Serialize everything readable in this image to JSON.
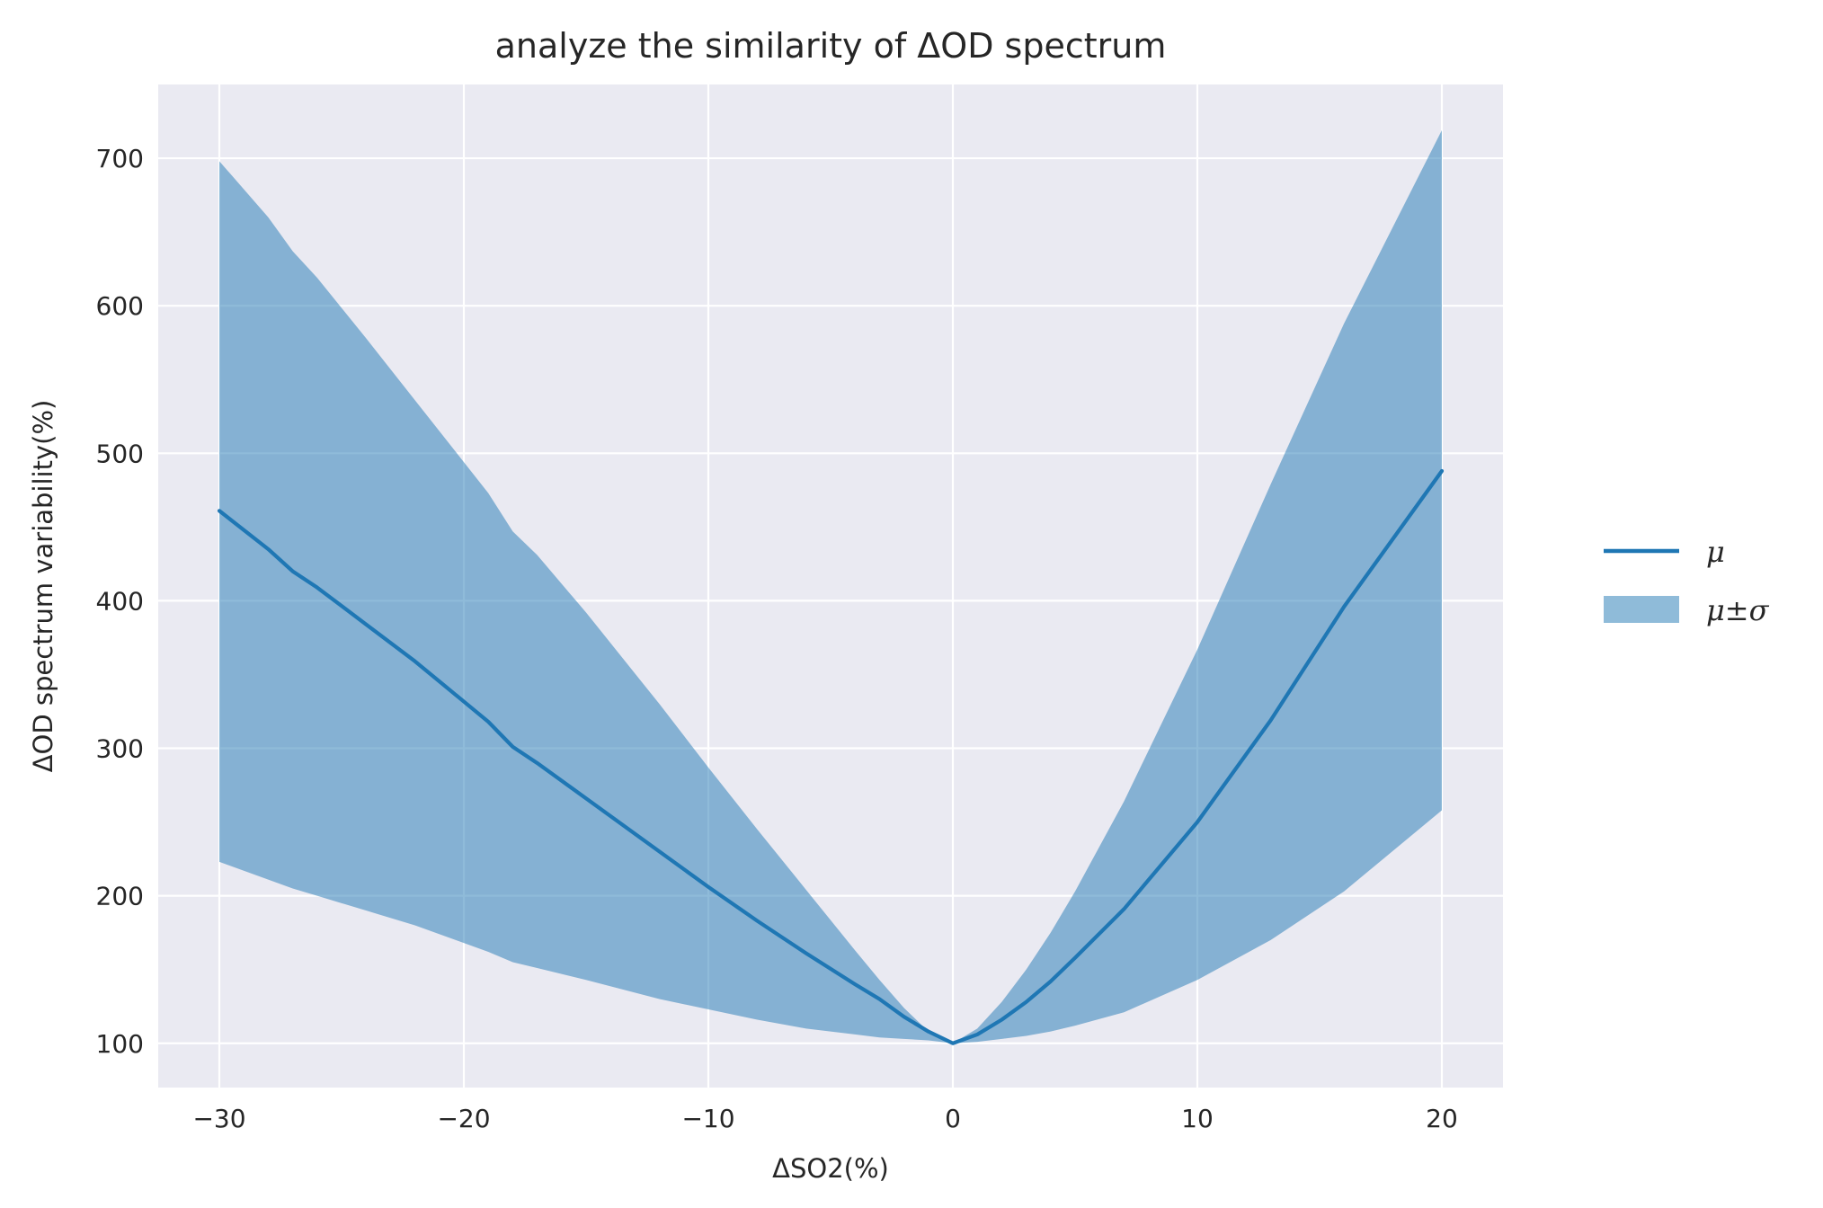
{
  "chart_data": {
    "type": "line",
    "title": "analyze the similarity of ΔOD spectrum",
    "xlabel": "ΔSO2(%)",
    "ylabel": "ΔOD spectrum variability(%)",
    "xlim": [
      -32.5,
      22.5
    ],
    "ylim": [
      70,
      750
    ],
    "xticks": [
      -30,
      -20,
      -10,
      0,
      10,
      20
    ],
    "xtick_labels": [
      "−30",
      "−20",
      "−10",
      "0",
      "10",
      "20"
    ],
    "yticks": [
      100,
      200,
      300,
      400,
      500,
      600,
      700
    ],
    "ytick_labels": [
      "100",
      "200",
      "300",
      "400",
      "500",
      "600",
      "700"
    ],
    "grid": true,
    "legend_position": "right",
    "colors": {
      "background": "#eaeaf2",
      "grid": "#ffffff",
      "line": "#1f77b4",
      "band": "#1f77b4",
      "band_opacity": 0.5
    },
    "series": [
      {
        "name": "μ",
        "kind": "line",
        "x": [
          -30,
          -28,
          -27,
          -26,
          -24,
          -22,
          -19,
          -18,
          -17,
          -15,
          -12,
          -10,
          -8,
          -6,
          -4,
          -3,
          -2,
          -1,
          0,
          1,
          2,
          3,
          4,
          5,
          7,
          10,
          13,
          16,
          20
        ],
        "values": [
          461,
          435,
          420,
          409,
          384,
          359,
          318,
          301,
          290,
          266,
          230,
          206,
          183,
          161,
          140,
          130,
          118,
          108,
          100,
          106,
          116,
          128,
          142,
          158,
          191,
          250,
          319,
          396,
          488
        ]
      },
      {
        "name": "μ±σ",
        "kind": "band",
        "x": [
          -30,
          -28,
          -27,
          -26,
          -24,
          -22,
          -19,
          -18,
          -17,
          -15,
          -12,
          -10,
          -8,
          -6,
          -4,
          -3,
          -2,
          -1,
          0,
          1,
          2,
          3,
          4,
          5,
          7,
          10,
          13,
          16,
          20
        ],
        "upper": [
          698,
          660,
          637,
          619,
          578,
          536,
          473,
          447,
          431,
          392,
          330,
          287,
          245,
          204,
          163,
          143,
          124,
          108,
          100,
          110,
          128,
          150,
          175,
          203,
          264,
          367,
          479,
          588,
          719
        ],
        "lower": [
          223,
          211,
          205,
          200,
          190,
          180,
          162,
          155,
          151,
          143,
          130,
          123,
          116,
          110,
          106,
          104,
          103,
          102,
          100,
          101,
          103,
          105,
          108,
          112,
          121,
          143,
          170,
          203,
          258
        ]
      }
    ]
  }
}
